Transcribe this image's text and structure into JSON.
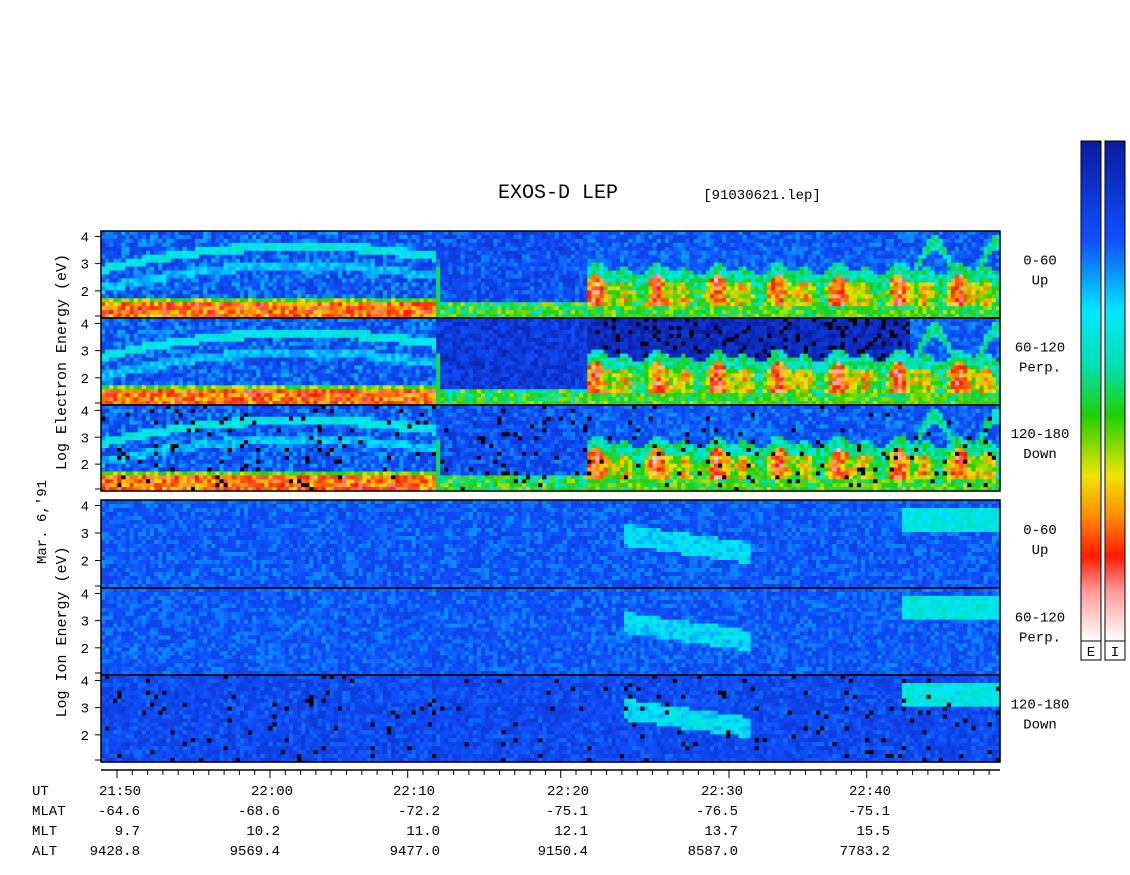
{
  "chart_data": {
    "type": "heatmap",
    "title": "EXOS-D LEP",
    "file_label": "[91030621.lep]",
    "date_label": "Mar. 6,'91",
    "electron_ylabel": [
      "Log",
      "Electron",
      "Energy",
      "(eV)"
    ],
    "ion_ylabel": [
      "Log",
      "Ion",
      "Energy",
      "(eV)"
    ],
    "ylim": [
      1,
      4.2
    ],
    "yticks": [
      "4",
      "3",
      "2"
    ],
    "yticks_bottom": [
      "4",
      "3",
      "2"
    ],
    "x_tick_labels": [
      "21:50",
      "22:00",
      "22:10",
      "22:20",
      "22:30",
      "22:40"
    ],
    "colorbar_labels": [
      "E",
      "I"
    ],
    "panels": [
      {
        "species": "electron",
        "pitch": "0-60",
        "dir": "Up"
      },
      {
        "species": "electron",
        "pitch": "60-120",
        "dir": "Perp."
      },
      {
        "species": "electron",
        "pitch": "120-180",
        "dir": "Down"
      },
      {
        "species": "ion",
        "pitch": "0-60",
        "dir": "Up"
      },
      {
        "species": "ion",
        "pitch": "60-120",
        "dir": "Perp."
      },
      {
        "species": "ion",
        "pitch": "120-180",
        "dir": "Down"
      }
    ],
    "ephemeris": {
      "row_labels": [
        "UT",
        "MLAT",
        "MLT",
        "ALT"
      ],
      "MLAT": [
        "-64.6",
        "-68.6",
        "-72.2",
        "-75.1",
        "-76.5",
        "-75.1"
      ],
      "MLT": [
        "9.7",
        "10.2",
        "11.0",
        "12.1",
        "13.7",
        "15.5"
      ],
      "ALT": [
        "9428.8",
        "9569.4",
        "9477.0",
        "9150.4",
        "8587.0",
        "7783.2"
      ]
    }
  }
}
